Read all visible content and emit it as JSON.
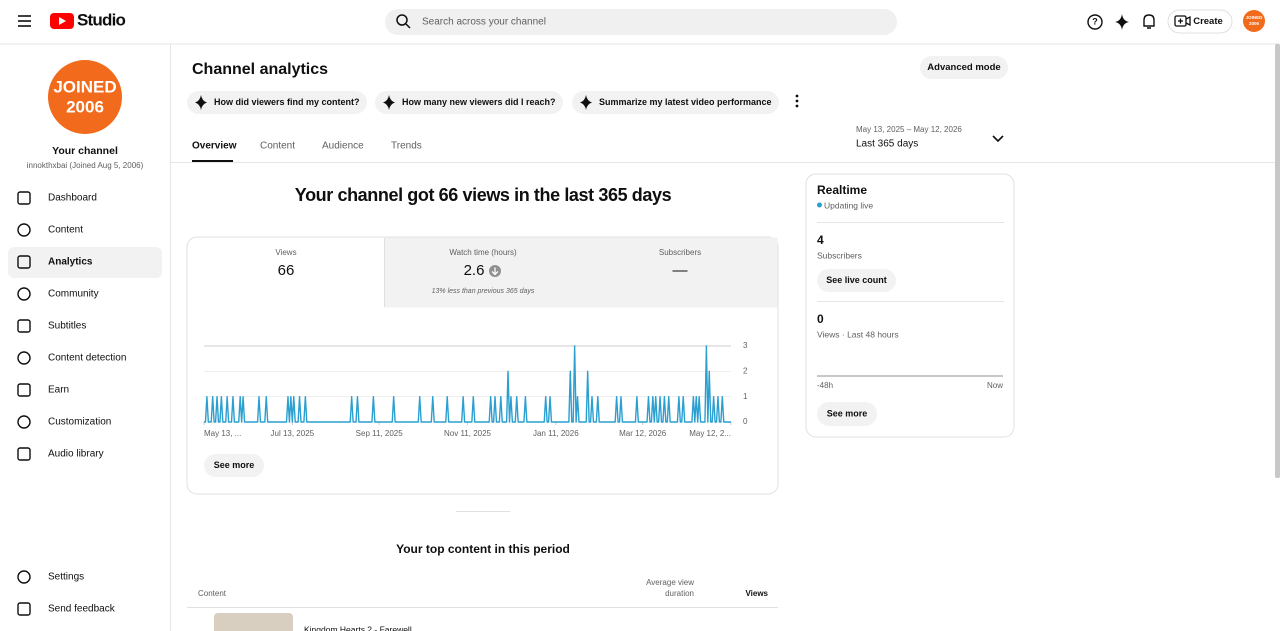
{
  "header": {
    "search_placeholder": "Search across your channel",
    "create": "Create",
    "avatar_text": [
      "JOINED",
      "2006"
    ]
  },
  "sidebar": {
    "avatar_text": [
      "JOINED",
      "2006"
    ],
    "channel_title": "Your channel",
    "channel_subtitle": "innokthxbai (Joined Aug 5, 2006)",
    "nav": [
      "Dashboard",
      "Content",
      "Analytics",
      "Community",
      "Subtitles",
      "Content detection",
      "Earn",
      "Customization",
      "Audio library"
    ],
    "footer": [
      "Settings",
      "Send feedback"
    ]
  },
  "page": {
    "title": "Channel analytics",
    "advanced_mode": "Advanced mode",
    "chips": [
      "How did viewers find my content?",
      "How many new viewers did I reach?",
      "Summarize my latest video performance"
    ],
    "tabs": [
      "Overview",
      "Content",
      "Audience",
      "Trends"
    ],
    "date_range": "May 13, 2025 – May 12, 2026",
    "date_period": "Last 365 days",
    "headline": "Your channel got 66 views in the last 365 days",
    "see_more": "See more"
  },
  "stats": [
    {
      "label": "Views",
      "value": 66
    },
    {
      "label": "Watch time (hours)",
      "value": 2.6,
      "note": "13% less than previous 365 days"
    },
    {
      "label": "Subscribers",
      "value": "—"
    }
  ],
  "chart_data": {
    "type": "line",
    "color": "#2a9fd0",
    "ylim": [
      0,
      3
    ],
    "yticks": [
      0,
      1,
      2,
      3
    ],
    "xlim": [
      0,
      364
    ],
    "xticks": [
      {
        "value": 0,
        "label": "May 13, ..."
      },
      {
        "value": 61,
        "label": "Jul 13, 2025"
      },
      {
        "value": 121,
        "label": "Sep 11, 2025"
      },
      {
        "value": 182,
        "label": "Nov 11, 2025"
      },
      {
        "value": 243,
        "label": "Jan 11, 2026"
      },
      {
        "value": 303,
        "label": "Mar 12, 2026"
      },
      {
        "value": 364,
        "label": "May 12, 2..."
      }
    ],
    "values": [
      0,
      0,
      1,
      0,
      0,
      0,
      1,
      0,
      0,
      1,
      0,
      0,
      1,
      0,
      0,
      0,
      1,
      0,
      0,
      0,
      1,
      0,
      0,
      0,
      0,
      1,
      0,
      1,
      0,
      0,
      0,
      0,
      0,
      0,
      0,
      0,
      0,
      0,
      1,
      0,
      0,
      0,
      0,
      1,
      0,
      0,
      0,
      0,
      0,
      0,
      0,
      0,
      0,
      0,
      0,
      0,
      0,
      0,
      1,
      0,
      1,
      0,
      1,
      0,
      0,
      0,
      1,
      0,
      0,
      0,
      1,
      0,
      0,
      0,
      0,
      0,
      0,
      0,
      0,
      0,
      0,
      0,
      0,
      0,
      0,
      0,
      0,
      0,
      0,
      0,
      0,
      0,
      0,
      0,
      0,
      0,
      0,
      0,
      0,
      0,
      0,
      0,
      1,
      0,
      0,
      0,
      1,
      0,
      0,
      0,
      0,
      0,
      0,
      0,
      0,
      0,
      0,
      1,
      0,
      0,
      0,
      0,
      0,
      0,
      0,
      0,
      0,
      0,
      0,
      0,
      0,
      1,
      0,
      0,
      0,
      0,
      0,
      0,
      0,
      0,
      0,
      0,
      0,
      0,
      0,
      0,
      0,
      0,
      0,
      1,
      0,
      0,
      0,
      0,
      0,
      0,
      0,
      0,
      1,
      0,
      0,
      0,
      0,
      0,
      0,
      0,
      0,
      0,
      1,
      0,
      0,
      0,
      0,
      0,
      0,
      0,
      0,
      0,
      0,
      1,
      0,
      0,
      0,
      0,
      0,
      0,
      1,
      0,
      0,
      0,
      0,
      0,
      0,
      0,
      0,
      0,
      0,
      0,
      1,
      0,
      0,
      1,
      0,
      0,
      0,
      1,
      0,
      0,
      0,
      0,
      2,
      0,
      1,
      0,
      0,
      0,
      1,
      0,
      0,
      0,
      0,
      0,
      1,
      0,
      0,
      0,
      0,
      0,
      0,
      0,
      0,
      0,
      0,
      0,
      0,
      0,
      1,
      0,
      0,
      1,
      0,
      0,
      0,
      0,
      0,
      0,
      0,
      0,
      0,
      0,
      0,
      0,
      0,
      2,
      0,
      0,
      3,
      0,
      1,
      0,
      0,
      0,
      0,
      0,
      0,
      2,
      0,
      0,
      1,
      0,
      0,
      0,
      1,
      0,
      0,
      0,
      0,
      0,
      0,
      0,
      0,
      0,
      0,
      0,
      0,
      1,
      0,
      0,
      1,
      0,
      0,
      0,
      0,
      0,
      0,
      0,
      0,
      0,
      0,
      1,
      0,
      0,
      0,
      0,
      0,
      0,
      0,
      1,
      0,
      0,
      1,
      0,
      1,
      0,
      0,
      1,
      0,
      0,
      1,
      0,
      0,
      1,
      0,
      0,
      0,
      0,
      0,
      0,
      1,
      0,
      0,
      1,
      0,
      0,
      0,
      0,
      0,
      0,
      1,
      0,
      1,
      0,
      1,
      0,
      0,
      0,
      0,
      3,
      0,
      2,
      0,
      0,
      1,
      0,
      0,
      1,
      0,
      0,
      1,
      0,
      0,
      0,
      0,
      0,
      0
    ]
  },
  "realtime": {
    "title": "Realtime",
    "status": "Updating live",
    "subscribers": 4,
    "subscribers_label": "Subscribers",
    "live_count_button": "See live count",
    "views": 0,
    "views_label": "Views · Last 48 hours",
    "axis_start": "-48h",
    "axis_end": "Now",
    "see_more": "See more"
  },
  "top_content": {
    "title": "Your top content in this period",
    "columns": {
      "content": "Content",
      "avg_duration": [
        "Average view",
        "duration"
      ],
      "views": "Views"
    },
    "rows": [
      {
        "title": "Kingdom Hearts 2 - Farewell"
      }
    ]
  }
}
